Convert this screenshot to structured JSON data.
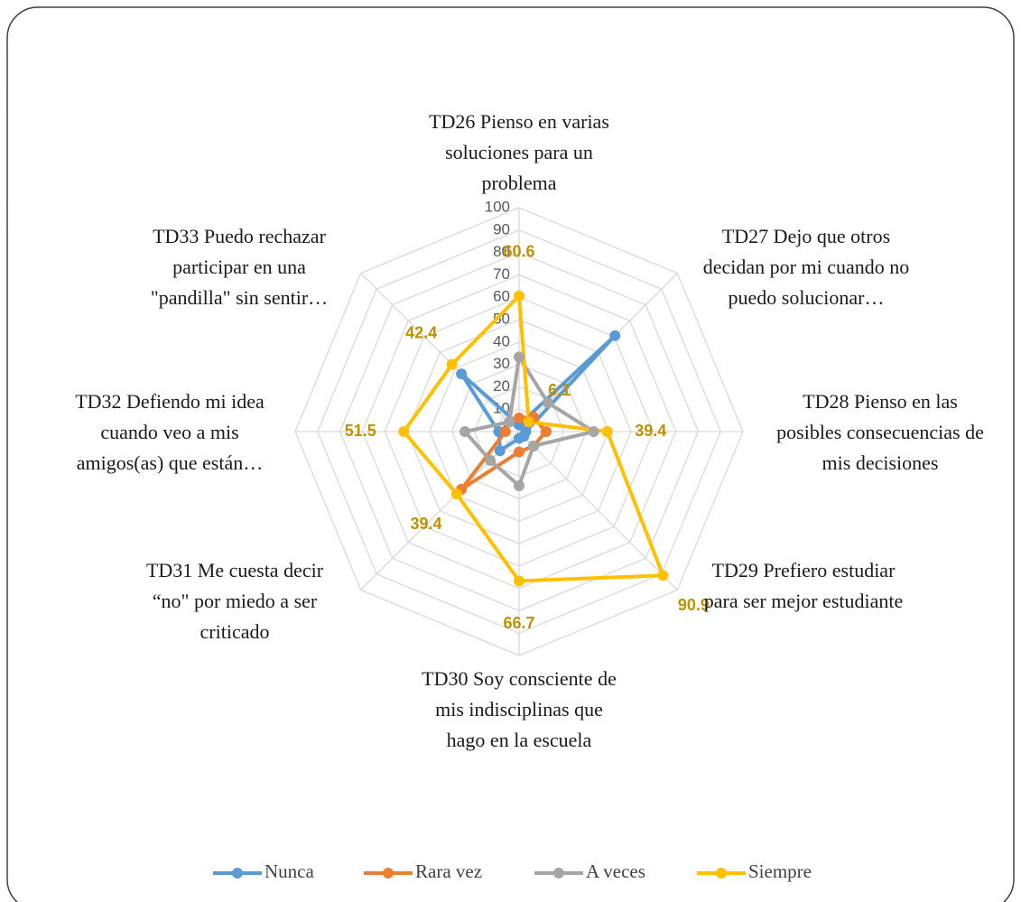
{
  "chart_data": {
    "type": "radar",
    "categories": [
      "TD26 Pienso en varias soluciones para un problema",
      "TD27 Dejo que otros decidan por mi cuando no puedo solucionar…",
      "TD28 Pienso en las posibles consecuencias de mis decisiones",
      "TD29 Prefiero estudiar para ser mejor estudiante",
      "TD30 Soy consciente de mis indisciplinas que hago en la escuela",
      "TD31 Me cuesta decir “no\" por miedo a ser criticado",
      "TD32 Defiendo mi idea cuando veo a mis amigos(as) que están…",
      "TD33 Puedo rechazar participar en una \"pandilla\" sin sentir…"
    ],
    "series": [
      {
        "name": "Nunca",
        "color": "#5b9bd5",
        "values": [
          3,
          60.6,
          3,
          3,
          3,
          12.1,
          9.1,
          36.4
        ]
      },
      {
        "name": "Rara vez",
        "color": "#ed7d31",
        "values": [
          6.1,
          9.1,
          12.1,
          9.1,
          9.1,
          36.4,
          6.1,
          6.1
        ]
      },
      {
        "name": "A veces",
        "color": "#a5a5a5",
        "values": [
          33.3,
          18.2,
          33.3,
          9.1,
          24.2,
          18.2,
          24.2,
          6.1
        ]
      },
      {
        "name": "Siempre",
        "color": "#ffc000",
        "values": [
          60.6,
          6.1,
          39.4,
          90.9,
          66.7,
          39.4,
          51.5,
          42.4
        ]
      }
    ],
    "data_labels": [
      false,
      false,
      false,
      true
    ],
    "data_label_color": "#bf9000",
    "ylim": [
      0,
      100
    ],
    "yticks": [
      0,
      10,
      20,
      30,
      40,
      50,
      60,
      70,
      80,
      90,
      100
    ],
    "grid": true,
    "legend": "bottom"
  }
}
